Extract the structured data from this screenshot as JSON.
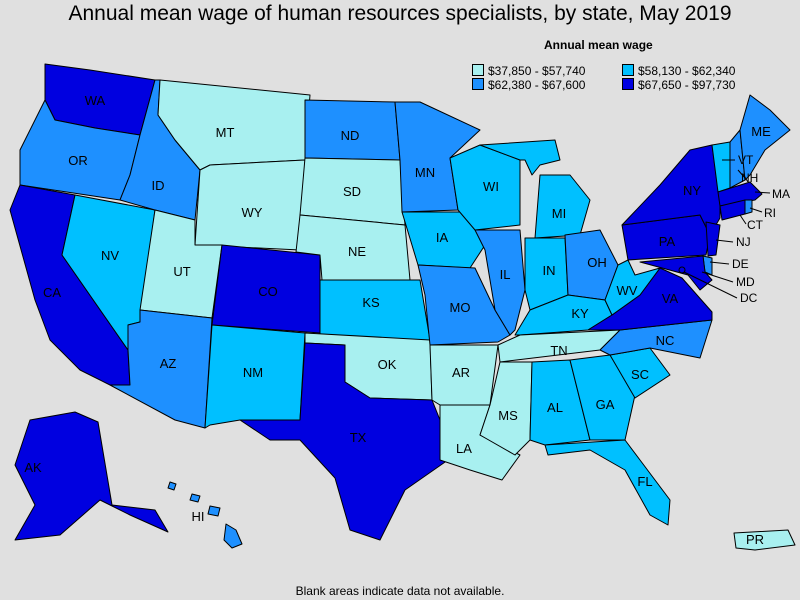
{
  "title": "Annual mean wage of human resources specialists, by state, May 2019",
  "legend": {
    "title": "Annual mean wage",
    "items": [
      {
        "label": "$37,850 - $57,740",
        "color": "#a8f0f0"
      },
      {
        "label": "$58,130 - $62,340",
        "color": "#00c0ff"
      },
      {
        "label": "$62,380 - $67,600",
        "color": "#1e90ff"
      },
      {
        "label": "$67,650 - $97,730",
        "color": "#0000e0"
      }
    ]
  },
  "footnote": "Blank areas indicate data not available.",
  "states": {
    "WA": {
      "label": "WA",
      "tier": 3
    },
    "OR": {
      "label": "OR",
      "tier": 2
    },
    "CA": {
      "label": "CA",
      "tier": 3
    },
    "NV": {
      "label": "NV",
      "tier": 1
    },
    "ID": {
      "label": "ID",
      "tier": 2
    },
    "MT": {
      "label": "MT",
      "tier": 0
    },
    "WY": {
      "label": "WY",
      "tier": 0
    },
    "UT": {
      "label": "UT",
      "tier": 0
    },
    "AZ": {
      "label": "AZ",
      "tier": 2
    },
    "CO": {
      "label": "CO",
      "tier": 3
    },
    "NM": {
      "label": "NM",
      "tier": 1
    },
    "ND": {
      "label": "ND",
      "tier": 2
    },
    "SD": {
      "label": "SD",
      "tier": 0
    },
    "NE": {
      "label": "NE",
      "tier": 0
    },
    "KS": {
      "label": "KS",
      "tier": 1
    },
    "OK": {
      "label": "OK",
      "tier": 0
    },
    "TX": {
      "label": "TX",
      "tier": 3
    },
    "MN": {
      "label": "MN",
      "tier": 2
    },
    "IA": {
      "label": "IA",
      "tier": 1
    },
    "MO": {
      "label": "MO",
      "tier": 2
    },
    "AR": {
      "label": "AR",
      "tier": 0
    },
    "LA": {
      "label": "LA",
      "tier": 0
    },
    "WI": {
      "label": "WI",
      "tier": 1
    },
    "IL": {
      "label": "IL",
      "tier": 2
    },
    "MI": {
      "label": "MI",
      "tier": 1
    },
    "IN": {
      "label": "IN",
      "tier": 1
    },
    "OH": {
      "label": "OH",
      "tier": 2
    },
    "KY": {
      "label": "KY",
      "tier": 1
    },
    "TN": {
      "label": "TN",
      "tier": 0
    },
    "MS": {
      "label": "MS",
      "tier": 0
    },
    "AL": {
      "label": "AL",
      "tier": 1
    },
    "GA": {
      "label": "GA",
      "tier": 1
    },
    "FL": {
      "label": "FL",
      "tier": 1
    },
    "SC": {
      "label": "SC",
      "tier": 1
    },
    "NC": {
      "label": "NC",
      "tier": 2
    },
    "VA": {
      "label": "VA",
      "tier": 3
    },
    "WV": {
      "label": "WV",
      "tier": 1
    },
    "PA": {
      "label": "PA",
      "tier": 3
    },
    "NY": {
      "label": "NY",
      "tier": 3
    },
    "VT": {
      "label": "VT",
      "tier": 1
    },
    "NH": {
      "label": "NH",
      "tier": 2
    },
    "ME": {
      "label": "ME",
      "tier": 2
    },
    "MA": {
      "label": "MA",
      "tier": 3
    },
    "RI": {
      "label": "RI",
      "tier": 2
    },
    "CT": {
      "label": "CT",
      "tier": 3
    },
    "NJ": {
      "label": "NJ",
      "tier": 3
    },
    "DE": {
      "label": "DE",
      "tier": 2
    },
    "MD": {
      "label": "MD",
      "tier": 3
    },
    "DC": {
      "label": "DC",
      "tier": 3
    },
    "AK": {
      "label": "AK",
      "tier": 3
    },
    "HI": {
      "label": "HI",
      "tier": 2
    },
    "PR": {
      "label": "PR",
      "tier": 0
    }
  }
}
